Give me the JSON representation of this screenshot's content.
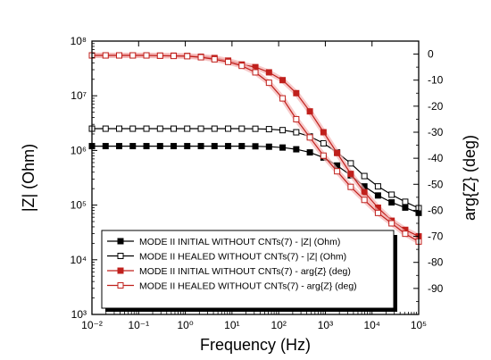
{
  "chart_data": {
    "type": "line",
    "title": "",
    "xlabel": "Frequency (Hz)",
    "ylabel_left": "|Z| (Ohm)",
    "ylabel_right": "arg{Z} (deg)",
    "xscale": "log",
    "xlim": [
      0.01,
      100000
    ],
    "ylim_left": [
      1000,
      100000000
    ],
    "ylim_right": [
      -100,
      5
    ],
    "x_tick_labels": [
      "10⁻²",
      "10⁻¹",
      "10⁰",
      "10¹",
      "10²",
      "10³",
      "10⁴",
      "10⁵"
    ],
    "y_left_tick_labels": [
      "10³",
      "10⁴",
      "10⁵",
      "10⁶",
      "10⁷",
      "10⁸"
    ],
    "y_right_ticks": [
      0,
      -10,
      -20,
      -30,
      -40,
      -50,
      -60,
      -70,
      -80,
      -90
    ],
    "x": [
      0.01,
      0.0196,
      0.0383,
      0.075,
      0.147,
      0.288,
      0.563,
      1.1,
      2.16,
      4.22,
      8.27,
      16.2,
      31.7,
      62.1,
      121.6,
      238.2,
      466.4,
      913.3,
      1788,
      3502,
      6858,
      13430,
      26300,
      51500,
      100000
    ],
    "series": [
      {
        "name": "MODE II INITIAL WITHOUT CNTs(7) - |Z| (Ohm)",
        "axis": "left",
        "marker": "filled-square",
        "color": "#000000",
        "values": [
          1200000,
          1200000,
          1200000,
          1200000,
          1200000,
          1200000,
          1200000,
          1200000,
          1200000,
          1200000,
          1200000,
          1200000,
          1190000,
          1170000,
          1130000,
          1050000,
          920000,
          740000,
          530000,
          350000,
          220000,
          150000,
          112000,
          90000,
          72000
        ]
      },
      {
        "name": "MODE II HEALED WITHOUT CNTs(7) - |Z| (Ohm)",
        "axis": "left",
        "marker": "open-square",
        "color": "#000000",
        "values": [
          2500000,
          2500000,
          2500000,
          2500000,
          2500000,
          2500000,
          2500000,
          2500000,
          2500000,
          2500000,
          2500000,
          2500000,
          2490000,
          2450000,
          2350000,
          2150000,
          1800000,
          1350000,
          920000,
          580000,
          340000,
          220000,
          155000,
          115000,
          88000
        ]
      },
      {
        "name": "MODE II INITIAL WITHOUT CNTs(7) - arg{Z} (deg)",
        "axis": "right",
        "marker": "filled-square",
        "color": "#c0201c",
        "values": [
          -0.5,
          -0.5,
          -0.5,
          -0.5,
          -0.5,
          -0.6,
          -0.6,
          -0.7,
          -1,
          -1.5,
          -2.5,
          -4,
          -5,
          -7,
          -10,
          -15,
          -22,
          -30,
          -38,
          -46,
          -53,
          -59,
          -64,
          -67.5,
          -70
        ]
      },
      {
        "name": "MODE II HEALED WITHOUT CNTs(7) - arg{Z} (deg)",
        "axis": "right",
        "marker": "open-square",
        "color": "#c0201c",
        "values": [
          -0.5,
          -0.5,
          -0.5,
          -0.5,
          -0.5,
          -0.6,
          -0.7,
          -0.8,
          -1.2,
          -2,
          -3,
          -4.5,
          -7,
          -11,
          -17,
          -25,
          -32,
          -39,
          -45,
          -51,
          -56,
          -61,
          -65,
          -69,
          -72
        ]
      }
    ],
    "legend_position": "bottom-left",
    "grid": false
  }
}
